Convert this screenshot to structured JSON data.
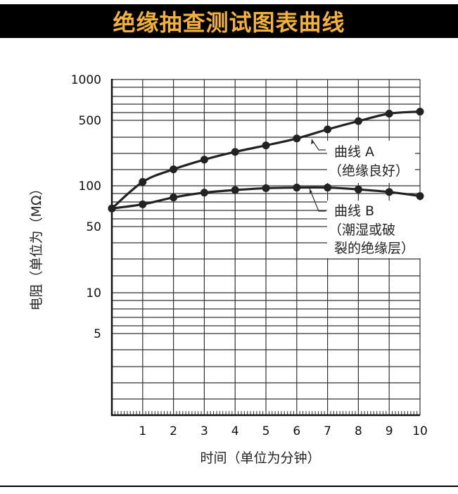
{
  "title": "绝缘抽查测试图表曲线",
  "colors": {
    "title_bar": "#000000",
    "title_text": "#f2b13a",
    "curve": "#222222",
    "grid": "#333333"
  },
  "chart_data": {
    "type": "line",
    "title": "绝缘抽查测试图表曲线",
    "xlabel": "时间（单位为分钟）",
    "ylabel": "电阻（单位为（MΩ）",
    "xlim": [
      0,
      10
    ],
    "ylim": [
      0.7,
      1000
    ],
    "yscale": "log",
    "grid": true,
    "x": [
      0,
      1,
      2,
      3,
      4,
      5,
      6,
      7,
      8,
      9,
      10
    ],
    "x_ticks": [
      "1",
      "2",
      "3",
      "4",
      "5",
      "6",
      "7",
      "8",
      "9",
      "10"
    ],
    "y_ticks": [
      {
        "value": 1000,
        "label": "1000"
      },
      {
        "value": 500,
        "label": "500"
      },
      {
        "value": 100,
        "label": "100"
      },
      {
        "value": 50,
        "label": "50"
      },
      {
        "value": 10,
        "label": "10"
      },
      {
        "value": 5,
        "label": "5"
      }
    ],
    "series": [
      {
        "name": "曲线 A",
        "note": "（绝缘良好）",
        "values": [
          68,
          110,
          150,
          190,
          230,
          270,
          320,
          400,
          490,
          560,
          580
        ]
      },
      {
        "name": "曲线 B",
        "note_line1": "（潮湿或破",
        "note_line2": "裂的绝缘层）",
        "values": [
          68,
          73,
          82,
          89,
          93,
          96,
          97,
          97,
          94,
          90,
          84
        ]
      }
    ]
  }
}
